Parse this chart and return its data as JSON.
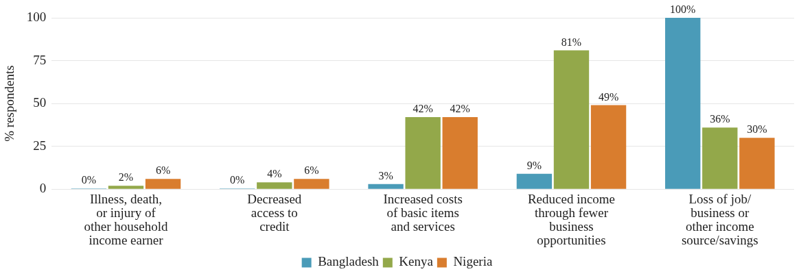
{
  "chart_data": {
    "type": "bar",
    "ylabel": "% respondents",
    "categories": [
      "Illness, death, or injury of other household income earner",
      "Decreased access to credit",
      "Increased costs of basic items and services",
      "Reduced income through fewer business opportunities",
      "Loss of job/ business or other income source/savings"
    ],
    "series": [
      {
        "name": "Bangladesh",
        "color": "#4a9bb8",
        "values": [
          0,
          0,
          3,
          9,
          100
        ],
        "value_labels": [
          "0%",
          "0%",
          "3%",
          "9%",
          "100%"
        ]
      },
      {
        "name": "Kenya",
        "color": "#93a84a",
        "values": [
          2,
          4,
          42,
          81,
          36
        ],
        "value_labels": [
          "2%",
          "4%",
          "42%",
          "81%",
          "36%"
        ]
      },
      {
        "name": "Nigeria",
        "color": "#d97d2e",
        "values": [
          6,
          6,
          42,
          49,
          30
        ],
        "value_labels": [
          "6%",
          "6%",
          "42%",
          "49%",
          "30%"
        ]
      }
    ],
    "ylim": [
      0,
      100
    ],
    "yticks": [
      0,
      25,
      50,
      75,
      100
    ],
    "grid": "y",
    "legend": "bottom"
  }
}
